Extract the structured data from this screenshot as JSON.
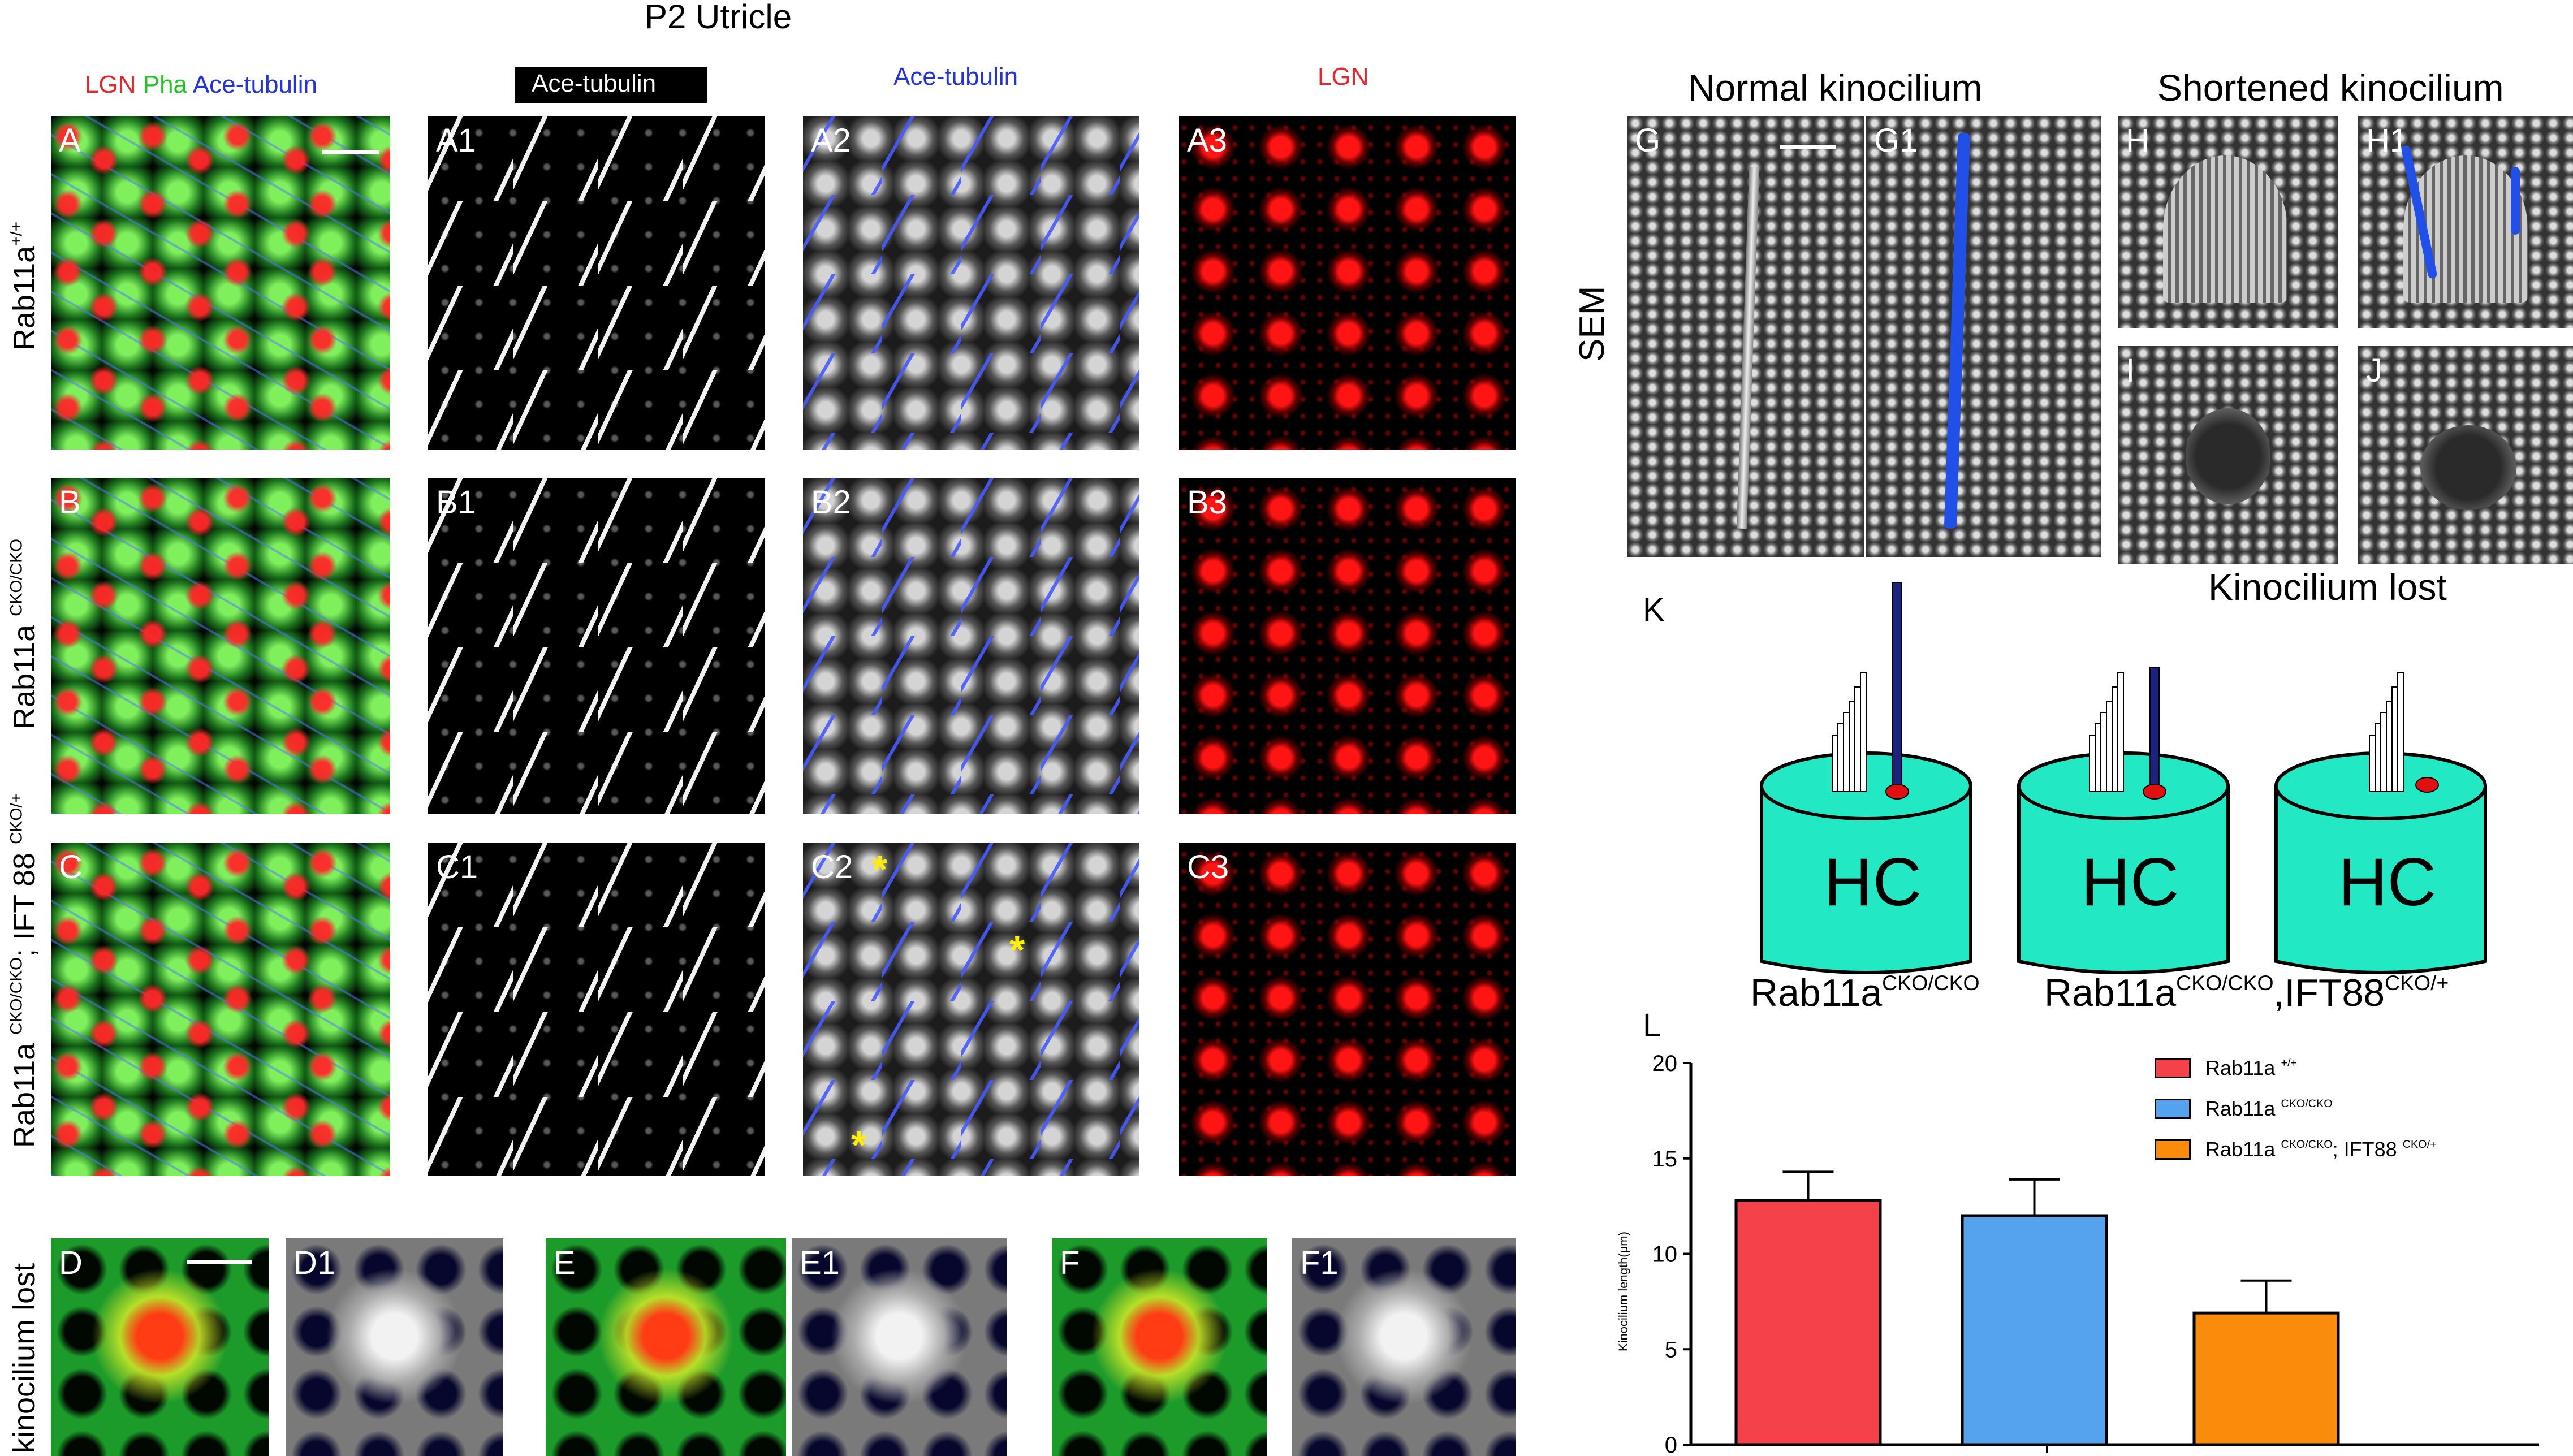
{
  "figure_title": "P2    Utricle",
  "column_headers": {
    "col1_parts": [
      {
        "text": "LGN",
        "color": "#e8262b"
      },
      {
        "text": "Pha",
        "color": "#22c422"
      },
      {
        "text": "Ace-tubulin",
        "color": "#2233dd"
      }
    ],
    "col2": "Ace-tubulin",
    "col3": "Ace-tubulin",
    "col4": "LGN"
  },
  "row_labels": {
    "row_a": {
      "base": "Rab11a",
      "sup": "+/+"
    },
    "row_b": {
      "base": "Rab11a ",
      "sup": "CKO/CKO"
    },
    "row_c": {
      "base1": "Rab11a ",
      "sup1": "CKO/CKO",
      "mid": "; IFT 88 ",
      "sup2": "CKO/+"
    },
    "row_d": "kinocilium lost"
  },
  "panel_labels": {
    "A": "A",
    "A1": "A1",
    "A2": "A2",
    "A3": "A3",
    "B": "B",
    "B1": "B1",
    "B2": "B2",
    "B3": "B3",
    "C": "C",
    "C1": "C1",
    "C2": "C2",
    "C3": "C3",
    "D": "D",
    "D1": "D1",
    "E": "E",
    "E1": "E1",
    "F": "F",
    "F1": "F1",
    "G": "G",
    "G1": "G1",
    "H": "H",
    "H1": "H1",
    "I": "I",
    "J": "J",
    "K": "K",
    "L": "L"
  },
  "asterisk": "*",
  "sem": {
    "normal_title": "Normal kinocilium",
    "short_title": "Shortened kinocilium",
    "lost_title": "Kinocilium lost",
    "side_label": "SEM"
  },
  "schematic": {
    "cell_label": "HC",
    "label_left": {
      "base": "Rab11a",
      "sup": "CKO/CKO"
    },
    "label_right": {
      "base1": "Rab11a",
      "sup1": "CKO/CKO",
      "mid": ",IFT88",
      "sup2": "CKO/+"
    },
    "cell_color": "#22e8c4",
    "kinocilium_color": "#1a237e",
    "basal_body_color": "#e01010"
  },
  "chart_data": {
    "type": "bar",
    "title": "",
    "xlabel": "",
    "ylabel": "Kinocilium length(μm)",
    "ylim": [
      0,
      20
    ],
    "yticks": [
      0,
      5,
      10,
      15,
      20
    ],
    "grid": false,
    "legend_position": "top-right",
    "series": [
      {
        "name_base": "Rab11a ",
        "name_sup": "+/+",
        "value": 12.8,
        "error": 1.5,
        "color": "#f5414a"
      },
      {
        "name_base": "Rab11a ",
        "name_sup": "CKO/CKO",
        "value": 12.0,
        "error": 1.9,
        "color": "#55a2ee"
      },
      {
        "name_base": "Rab11a ",
        "name_sup": "CKO/CKO",
        "name_mid": "; IFT88 ",
        "name_sup2": "CKO/+",
        "value": 6.9,
        "error": 1.7,
        "color": "#fb8b0a"
      }
    ]
  }
}
